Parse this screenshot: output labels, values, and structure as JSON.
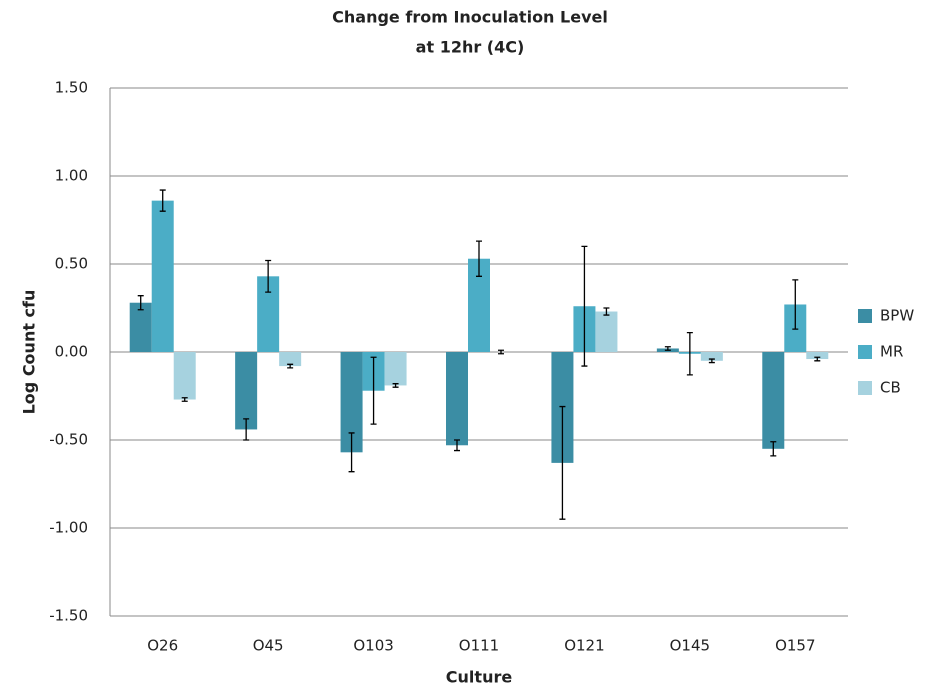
{
  "chart_data": {
    "type": "bar",
    "title": [
      "Change from Inoculation  Level",
      "at 12hr (4C)"
    ],
    "x_label": "Culture",
    "y_label": "Log Count cfu",
    "categories": [
      "O26",
      "O45",
      "O103",
      "O111",
      "O121",
      "O145",
      "O157"
    ],
    "series": [
      {
        "name": "BPW",
        "color": "#3b8da4",
        "values": [
          0.28,
          -0.44,
          -0.57,
          -0.53,
          -0.63,
          0.02,
          -0.55
        ],
        "errors": [
          0.04,
          0.06,
          0.11,
          0.03,
          0.32,
          0.01,
          0.04
        ]
      },
      {
        "name": "MR",
        "color": "#4badc6",
        "values": [
          0.86,
          0.43,
          -0.22,
          0.53,
          0.26,
          -0.01,
          0.27
        ],
        "errors": [
          0.06,
          0.09,
          0.19,
          0.1,
          0.34,
          0.12,
          0.14
        ]
      },
      {
        "name": "CB",
        "color": "#a6d2df",
        "values": [
          -0.27,
          -0.08,
          -0.19,
          0.0,
          0.23,
          -0.05,
          -0.04
        ],
        "errors": [
          0.01,
          0.01,
          0.01,
          0.01,
          0.02,
          0.01,
          0.01
        ]
      }
    ],
    "ylim": [
      -1.5,
      1.5
    ],
    "yticks": [
      {
        "value": -1.5,
        "label": "-1.50"
      },
      {
        "value": -1.0,
        "label": "-1.00"
      },
      {
        "value": -0.5,
        "label": "-0.50"
      },
      {
        "value": 0,
        "label": "0.00"
      },
      {
        "value": 0.5,
        "label": "0.50"
      },
      {
        "value": 1.0,
        "label": "1.00"
      },
      {
        "value": 1.5,
        "label": "1.50"
      }
    ],
    "grid": true,
    "legend": "right"
  }
}
